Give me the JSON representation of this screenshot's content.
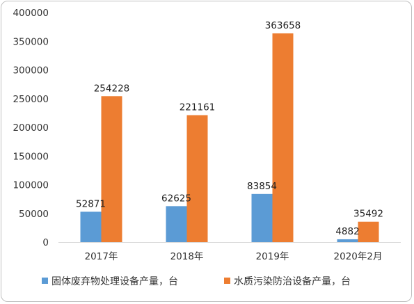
{
  "chart_data": {
    "type": "bar",
    "categories": [
      "2017年",
      "2018年",
      "2019年",
      "2020年2月"
    ],
    "series": [
      {
        "name": "固体废弃物处理设备产量，台",
        "values": [
          52871,
          62625,
          83854,
          4882
        ],
        "color": "#5b9bd5"
      },
      {
        "name": "水质污染防治设备产量，台",
        "values": [
          254228,
          221161,
          363658,
          35492
        ],
        "color": "#ed7d31"
      }
    ],
    "y_ticks": [
      "0",
      "50000",
      "100000",
      "150000",
      "200000",
      "250000",
      "300000",
      "350000",
      "400000"
    ],
    "ylim": [
      0,
      400000
    ],
    "title": "",
    "xlabel": "",
    "ylabel": "",
    "grid": false,
    "legend_position": "bottom"
  }
}
